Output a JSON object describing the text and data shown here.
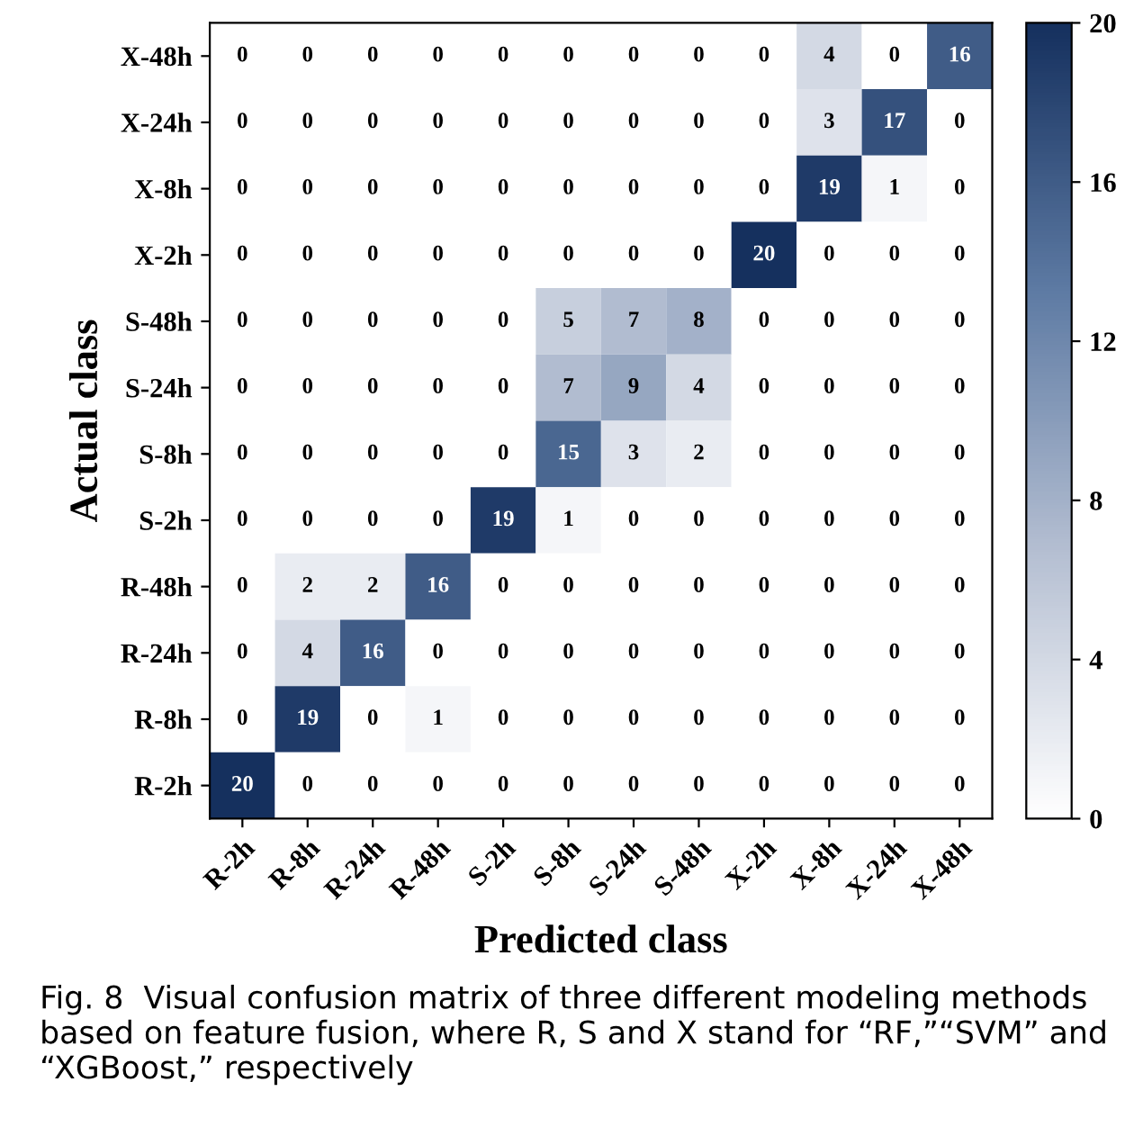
{
  "chart_data": {
    "type": "heatmap",
    "xlabel": "Predicted class",
    "ylabel": "Actual class",
    "categories": [
      "R-2h",
      "R-8h",
      "R-24h",
      "R-48h",
      "S-2h",
      "S-8h",
      "S-24h",
      "S-48h",
      "X-2h",
      "X-8h",
      "X-24h",
      "X-48h"
    ],
    "y_categories": [
      "X-48h",
      "X-24h",
      "X-8h",
      "X-2h",
      "S-48h",
      "S-24h",
      "S-8h",
      "S-2h",
      "R-48h",
      "R-24h",
      "R-8h",
      "R-2h"
    ],
    "cells": [
      [
        0,
        0,
        0,
        0,
        0,
        0,
        0,
        0,
        0,
        4,
        0,
        16
      ],
      [
        0,
        0,
        0,
        0,
        0,
        0,
        0,
        0,
        0,
        3,
        17,
        0
      ],
      [
        0,
        0,
        0,
        0,
        0,
        0,
        0,
        0,
        0,
        19,
        1,
        0
      ],
      [
        0,
        0,
        0,
        0,
        0,
        0,
        0,
        0,
        20,
        0,
        0,
        0
      ],
      [
        0,
        0,
        0,
        0,
        0,
        5,
        7,
        8,
        0,
        0,
        0,
        0
      ],
      [
        0,
        0,
        0,
        0,
        0,
        7,
        9,
        4,
        0,
        0,
        0,
        0
      ],
      [
        0,
        0,
        0,
        0,
        0,
        15,
        3,
        2,
        0,
        0,
        0,
        0
      ],
      [
        0,
        0,
        0,
        0,
        19,
        1,
        0,
        0,
        0,
        0,
        0,
        0
      ],
      [
        0,
        2,
        2,
        16,
        0,
        0,
        0,
        0,
        0,
        0,
        0,
        0
      ],
      [
        0,
        4,
        16,
        0,
        0,
        0,
        0,
        0,
        0,
        0,
        0,
        0
      ],
      [
        0,
        19,
        0,
        1,
        0,
        0,
        0,
        0,
        0,
        0,
        0,
        0
      ],
      [
        20,
        0,
        0,
        0,
        0,
        0,
        0,
        0,
        0,
        0,
        0,
        0
      ]
    ],
    "clim": [
      0,
      20
    ],
    "cticks": [
      0,
      4,
      8,
      12,
      16,
      20
    ],
    "data_labels": true,
    "annotations": [
      "Fig. 8  Visual confusion matrix of three different modeling methods based on feature fusion, where R, S and X stand for “RF,”“SVM” and “XGBoost,” respectively"
    ]
  }
}
